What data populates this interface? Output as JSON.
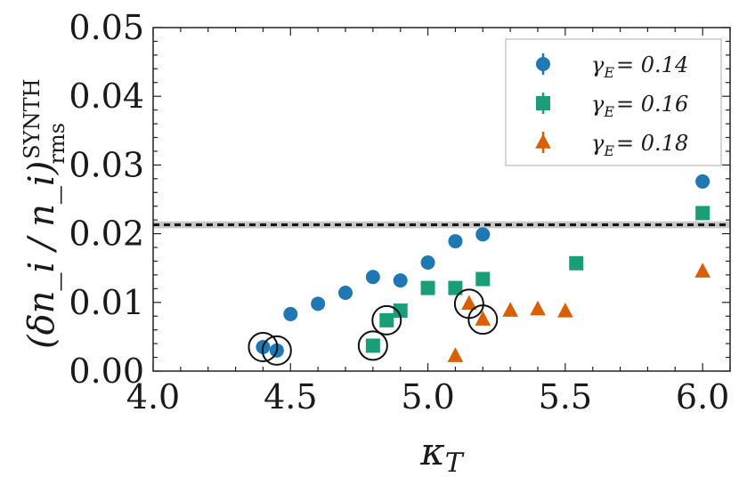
{
  "chart_data": {
    "type": "scatter",
    "xlabel": "κ_T",
    "ylabel_main": "(δn_i / n_i)",
    "ylabel_sup": "SYNTH",
    "ylabel_sub": "rms",
    "xlim": [
      4.0,
      6.1
    ],
    "ylim": [
      0.0,
      0.05
    ],
    "xticks": [
      "4.0",
      "4.5",
      "5.0",
      "5.5",
      "6.0"
    ],
    "xtick_values": [
      4.0,
      4.5,
      5.0,
      5.5,
      6.0
    ],
    "yticks": [
      "0.00",
      "0.01",
      "0.02",
      "0.03",
      "0.04",
      "0.05"
    ],
    "ytick_values": [
      0.0,
      0.01,
      0.02,
      0.03,
      0.04,
      0.05
    ],
    "reference_line": {
      "y": 0.0213,
      "band": [
        0.0208,
        0.0218
      ],
      "style": "dashed"
    },
    "legend_location": "top-right",
    "series": [
      {
        "name": "γ_E = 0.14",
        "legend_label_prefix": "γ",
        "legend_label_sub": "E",
        "legend_label_value": "= 0.14",
        "marker": "circle",
        "color": "#1f77b4",
        "x": [
          4.4,
          4.45,
          4.5,
          4.6,
          4.7,
          4.8,
          4.9,
          5.0,
          5.1,
          5.2,
          6.0
        ],
        "y": [
          0.0035,
          0.003,
          0.0083,
          0.0098,
          0.0114,
          0.0137,
          0.0132,
          0.0158,
          0.0189,
          0.0199,
          0.0276
        ]
      },
      {
        "name": "γ_E = 0.16",
        "legend_label_prefix": "γ",
        "legend_label_sub": "E",
        "legend_label_value": "= 0.16",
        "marker": "square",
        "color": "#1a9e77",
        "x": [
          4.8,
          4.85,
          4.9,
          5.0,
          5.1,
          5.2,
          5.54,
          6.0
        ],
        "y": [
          0.0037,
          0.0074,
          0.0088,
          0.0121,
          0.0121,
          0.0134,
          0.0157,
          0.023
        ]
      },
      {
        "name": "γ_E = 0.18",
        "legend_label_prefix": "γ",
        "legend_label_sub": "E",
        "legend_label_value": "= 0.18",
        "marker": "triangle",
        "color": "#d95f02",
        "x": [
          5.1,
          5.15,
          5.2,
          5.3,
          5.4,
          5.5,
          6.0
        ],
        "y": [
          0.0022,
          0.0098,
          0.0075,
          0.0088,
          0.009,
          0.0087,
          0.0145
        ]
      }
    ],
    "circled_points": [
      {
        "x": 4.4,
        "y": 0.0035
      },
      {
        "x": 4.45,
        "y": 0.003
      },
      {
        "x": 4.8,
        "y": 0.0037
      },
      {
        "x": 4.85,
        "y": 0.0074
      },
      {
        "x": 5.15,
        "y": 0.0098
      },
      {
        "x": 5.2,
        "y": 0.0075
      }
    ]
  }
}
